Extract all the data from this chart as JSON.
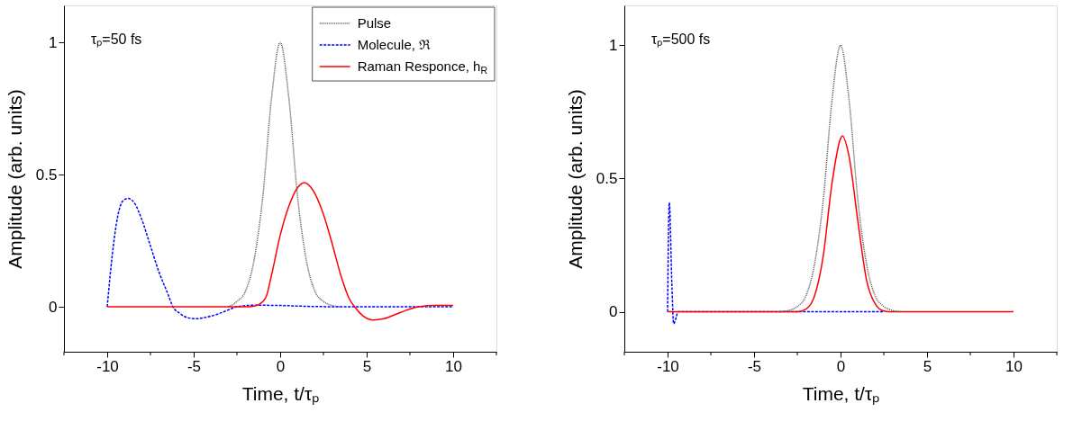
{
  "chart_data": [
    {
      "type": "line",
      "xlabel": "Time, t/τₚ",
      "ylabel": "Amplitude (arb. units)",
      "xlim": [
        -12.5,
        12.5
      ],
      "xticks": [
        {
          "value": -12.5,
          "label": null
        },
        -10,
        {
          "value": -7.5,
          "label": null
        },
        -5,
        {
          "value": -2.5,
          "label": null
        },
        0,
        {
          "value": 2.5,
          "label": null
        },
        5,
        {
          "value": 7.5,
          "label": null
        },
        10,
        {
          "value": 12.5,
          "label": null
        }
      ],
      "ylim": [
        -0.17,
        1.14
      ],
      "yticks": [
        0,
        0.5,
        1
      ],
      "grid": false,
      "legend": "top right",
      "annotations": [
        "τₚ=50 fs"
      ],
      "series": [
        {
          "name": "Pulse",
          "color": "#555555",
          "line_style": "dotted",
          "x": [
            -3,
            -2.5,
            -2,
            -1.5,
            -1,
            -0.5,
            0,
            0.5,
            1,
            1.5,
            2,
            2.5,
            3,
            3.5
          ],
          "values": [
            0,
            0.02,
            0.06,
            0.18,
            0.42,
            0.79,
            1.0,
            0.79,
            0.42,
            0.18,
            0.06,
            0.02,
            0.005,
            0
          ]
        },
        {
          "name": "Molecule, ℜ",
          "color": "#0000ff",
          "line_style": "dashed",
          "x": [
            -10,
            -9.7,
            -9.4,
            -9.1,
            -8.8,
            -8.4,
            -8,
            -7.5,
            -7,
            -6.5,
            -6.2,
            -5.8,
            -5.3,
            -4.8,
            -4.3,
            -3.5,
            -3,
            -2.5,
            -1.5,
            0,
            2,
            4,
            10
          ],
          "values": [
            0,
            0.2,
            0.34,
            0.4,
            0.41,
            0.39,
            0.33,
            0.23,
            0.13,
            0.05,
            0,
            -0.025,
            -0.042,
            -0.045,
            -0.04,
            -0.025,
            -0.012,
            0,
            0.006,
            0.005,
            0.001,
            0,
            0
          ]
        },
        {
          "name": "Raman Responce, h$_{R}$",
          "color": "#ff0000",
          "line_style": "solid",
          "x": [
            -10,
            -2,
            -1.5,
            -1,
            -0.8,
            -0.5,
            0,
            0.5,
            1,
            1.4,
            1.8,
            2.5,
            3,
            3.5,
            4,
            4.3,
            4.8,
            5.4,
            6,
            7,
            8,
            9,
            10
          ],
          "values": [
            0,
            0,
            0.003,
            0.02,
            0.04,
            0.12,
            0.27,
            0.38,
            0.45,
            0.47,
            0.45,
            0.35,
            0.24,
            0.12,
            0.03,
            0,
            -0.035,
            -0.05,
            -0.045,
            -0.02,
            0,
            0.005,
            0.005
          ]
        }
      ]
    },
    {
      "type": "line",
      "xlabel": "Time, t/τₚ",
      "ylabel": "Amplitude (arb. units)",
      "xlim": [
        -12.5,
        12.5
      ],
      "xticks": [
        {
          "value": -12.5,
          "label": null
        },
        -10,
        {
          "value": -7.5,
          "label": null
        },
        -5,
        {
          "value": -2.5,
          "label": null
        },
        0,
        {
          "value": 2.5,
          "label": null
        },
        5,
        {
          "value": 7.5,
          "label": null
        },
        10,
        {
          "value": 12.5,
          "label": null
        }
      ],
      "ylim": [
        -0.15,
        1.15
      ],
      "yticks": [
        0,
        0.5,
        1
      ],
      "grid": false,
      "legend": false,
      "annotations": [
        "τₚ=500 fs"
      ],
      "series": [
        {
          "color": "#555555",
          "line_style": "dotted",
          "x": [
            -3.5,
            -3,
            -2.5,
            -2,
            -1.5,
            -1,
            -0.5,
            0,
            0.5,
            1,
            1.5,
            2,
            2.5,
            3,
            3.5
          ],
          "values": [
            0,
            0.005,
            0.02,
            0.06,
            0.18,
            0.42,
            0.79,
            1.0,
            0.79,
            0.42,
            0.18,
            0.06,
            0.02,
            0.005,
            0
          ]
        },
        {
          "color": "#0000ff",
          "line_style": "dashed",
          "x": [
            -10,
            -9.9,
            -9.75,
            -9.65,
            -9.5,
            -9.4,
            2.5
          ],
          "values": [
            0,
            0.41,
            0.1,
            -0.045,
            -0.02,
            0,
            0
          ]
        },
        {
          "color": "#ff0000",
          "line_style": "solid",
          "x": [
            -10,
            -2.5,
            -2,
            -1.5,
            -1,
            -0.5,
            0,
            0.1,
            0.5,
            1,
            1.5,
            2,
            2.5,
            3,
            10
          ],
          "values": [
            0,
            0,
            0.01,
            0.06,
            0.21,
            0.48,
            0.65,
            0.66,
            0.58,
            0.34,
            0.12,
            0.03,
            0.003,
            0,
            0
          ]
        }
      ]
    }
  ]
}
